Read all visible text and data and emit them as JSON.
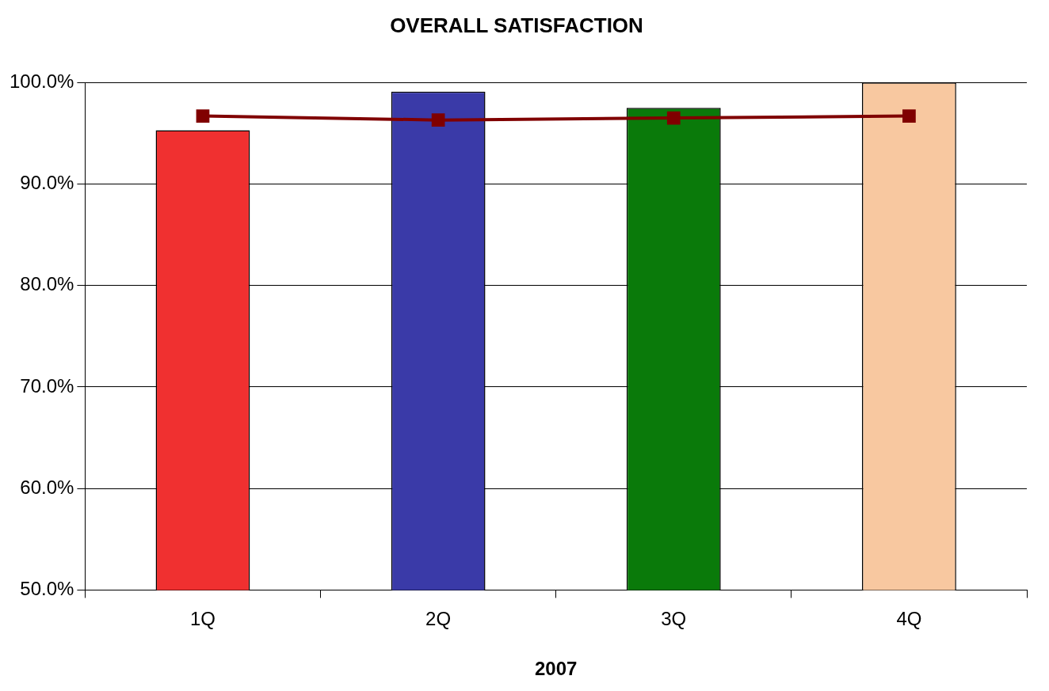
{
  "chart_data": {
    "type": "bar",
    "title": "OVERALL SATISFACTION",
    "xlabel": "2007",
    "categories": [
      "1Q",
      "2Q",
      "3Q",
      "4Q"
    ],
    "series": [
      {
        "colors": [
          "#f03030",
          "#3a3aa8",
          "#0a7a0a",
          "#f8c8a0"
        ],
        "values": [
          95.3,
          99.1,
          97.5,
          100.0
        ]
      },
      {
        "type": "line",
        "color": "#800000",
        "values": [
          96.7,
          96.3,
          96.5,
          96.7
        ]
      }
    ],
    "ylim": [
      50,
      100
    ],
    "yticks": [
      {
        "value": 50,
        "label": "50.0%"
      },
      {
        "value": 60,
        "label": "60.0%"
      },
      {
        "value": 70,
        "label": "70.0%"
      },
      {
        "value": 80,
        "label": "80.0%"
      },
      {
        "value": 90,
        "label": "90.0%"
      },
      {
        "value": 100,
        "label": "100.0%"
      }
    ],
    "grid": "y",
    "legend": false,
    "marker": "square",
    "line_style": "solid"
  }
}
